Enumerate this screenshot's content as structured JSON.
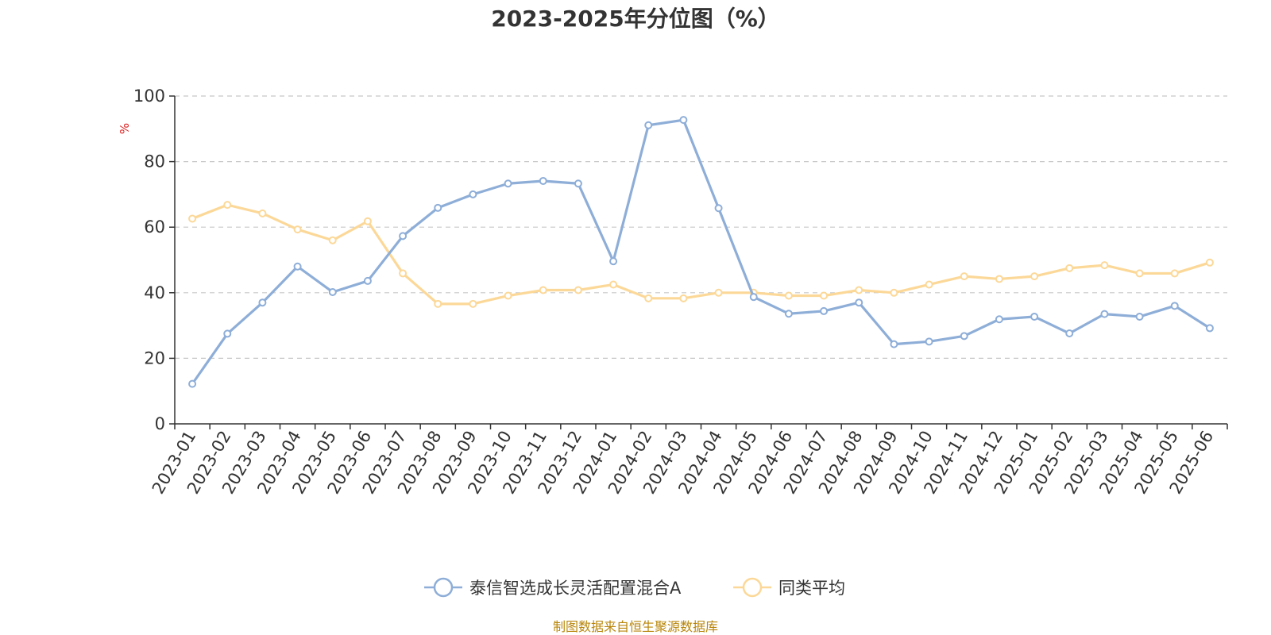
{
  "footer": "制图数据来自恒生聚源数据库",
  "chart_data": {
    "type": "line",
    "title": "2023-2025年分位图（%）",
    "ylabel": "%",
    "ylim": [
      0,
      100
    ],
    "yticks": [
      0,
      20,
      40,
      60,
      80,
      100
    ],
    "grid": true,
    "legend_position": "bottom",
    "x": [
      "2023-01",
      "2023-02",
      "2023-03",
      "2023-04",
      "2023-05",
      "2023-06",
      "2023-07",
      "2023-08",
      "2023-09",
      "2023-10",
      "2023-11",
      "2023-12",
      "2024-01",
      "2024-02",
      "2024-03",
      "2024-04",
      "2024-05",
      "2024-06",
      "2024-07",
      "2024-08",
      "2024-09",
      "2024-10",
      "2024-11",
      "2024-12",
      "2025-01",
      "2025-02",
      "2025-03",
      "2025-04",
      "2025-05",
      "2025-06"
    ],
    "series": [
      {
        "name": "泰信智选成长灵活配置混合A",
        "color": "#8eaed8",
        "values": [
          12.2,
          27.5,
          37,
          48,
          40.2,
          43.6,
          57.3,
          65.9,
          70,
          73.3,
          74.1,
          73.3,
          49.6,
          91.1,
          92.7,
          65.8,
          38.7,
          33.6,
          34.4,
          37,
          24.3,
          25.1,
          26.8,
          31.9,
          32.7,
          27.6,
          33.5,
          32.7,
          36,
          29.2
        ]
      },
      {
        "name": "同类平均",
        "color": "#fcd898",
        "values": [
          62.6,
          66.8,
          64.2,
          59.3,
          56,
          61.8,
          45.9,
          36.6,
          36.6,
          39.1,
          40.8,
          40.8,
          42.5,
          38.3,
          38.3,
          40,
          40,
          39.1,
          39.1,
          40.8,
          40,
          42.5,
          45,
          44.2,
          45,
          47.5,
          48.4,
          45.9,
          45.9,
          49.2
        ]
      }
    ]
  }
}
